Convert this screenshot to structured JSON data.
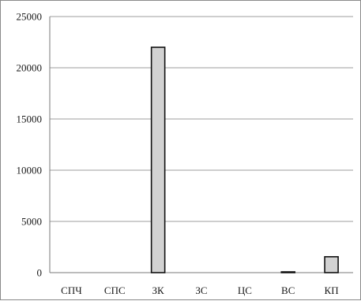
{
  "chart_data": {
    "type": "bar",
    "categories": [
      "СПЧ",
      "СПС",
      "ЗК",
      "ЗС",
      "ЦС",
      "ВС",
      "КП"
    ],
    "values": [
      0,
      0,
      22000,
      0,
      0,
      40,
      1550
    ],
    "title": "",
    "xlabel": "",
    "ylabel": "",
    "ylim": [
      0,
      25000
    ],
    "yticks": [
      0,
      5000,
      10000,
      15000,
      20000,
      25000
    ],
    "grid": true,
    "legend": "none",
    "colors": {
      "bar_fill": "#d2d2d2",
      "bar_stroke": "#111111",
      "grid": "#9e9e9e",
      "axis": "#7a7a7a",
      "text": "#1a1a1a"
    }
  }
}
